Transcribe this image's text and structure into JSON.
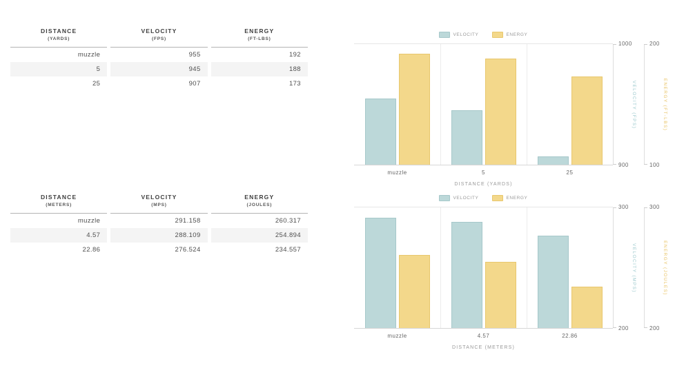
{
  "colors": {
    "velocity_fill": "#bcd8d9",
    "velocity_border": "#a6c8ca",
    "velocity_title": "#9cc9cd",
    "energy_fill": "#f3d88b",
    "energy_border": "#e8c76d",
    "energy_title": "#e9c468"
  },
  "tables": [
    {
      "columns": [
        {
          "title": "DISTANCE",
          "unit": "(YARDS)"
        },
        {
          "title": "VELOCITY",
          "unit": "(FPS)"
        },
        {
          "title": "ENERGY",
          "unit": "(FT-LBS)"
        }
      ],
      "rows": [
        [
          "muzzle",
          "955",
          "192"
        ],
        [
          "5",
          "945",
          "188"
        ],
        [
          "25",
          "907",
          "173"
        ]
      ]
    },
    {
      "columns": [
        {
          "title": "DISTANCE",
          "unit": "(METERS)"
        },
        {
          "title": "VELOCITY",
          "unit": "(MPS)"
        },
        {
          "title": "ENERGY",
          "unit": "(JOULES)"
        }
      ],
      "rows": [
        [
          "muzzle",
          "291.158",
          "260.317"
        ],
        [
          "4.57",
          "288.109",
          "254.894"
        ],
        [
          "22.86",
          "276.524",
          "234.557"
        ]
      ]
    }
  ],
  "chart_data": [
    {
      "type": "bar",
      "categories": [
        "muzzle",
        "5",
        "25"
      ],
      "series": [
        {
          "name": "VELOCITY",
          "values": [
            955,
            945,
            907
          ],
          "axis": {
            "label": "VELOCITY (FPS)",
            "min": 900,
            "max": 1000,
            "tick_top": "1000",
            "tick_bottom": "900"
          }
        },
        {
          "name": "ENERGY",
          "values": [
            192,
            188,
            173
          ],
          "axis": {
            "label": "ENERGY (FT-LBS)",
            "min": 100,
            "max": 200,
            "tick_top": "200",
            "tick_bottom": "100"
          }
        }
      ],
      "xlabel": "DISTANCE (YARDS)",
      "legend": [
        "VELOCITY",
        "ENERGY"
      ],
      "legend_position": "top",
      "grid": "category-separators"
    },
    {
      "type": "bar",
      "categories": [
        "muzzle",
        "4.57",
        "22.86"
      ],
      "series": [
        {
          "name": "VELOCITY",
          "values": [
            291.158,
            288.109,
            276.524
          ],
          "axis": {
            "label": "VELOCITY (MPS)",
            "min": 200,
            "max": 300,
            "tick_top": "300",
            "tick_bottom": "200"
          }
        },
        {
          "name": "ENERGY",
          "values": [
            260.317,
            254.894,
            234.557
          ],
          "axis": {
            "label": "ENERGY (JOULES)",
            "min": 200,
            "max": 300,
            "tick_top": "300",
            "tick_bottom": "200"
          }
        }
      ],
      "xlabel": "DISTANCE (METERS)",
      "legend": [
        "VELOCITY",
        "ENERGY"
      ],
      "legend_position": "top",
      "grid": "category-separators"
    }
  ]
}
